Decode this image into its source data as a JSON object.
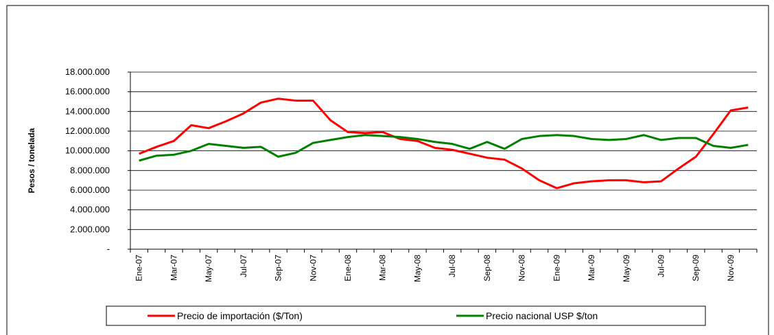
{
  "chart_data": {
    "type": "line",
    "y_label": "Pesos / tonelada",
    "categories": [
      "Ene-07",
      null,
      "Mar-07",
      null,
      "May-07",
      null,
      "Jul-07",
      null,
      "Sep-07",
      null,
      "Nov-07",
      null,
      "Ene-08",
      null,
      "Mar-08",
      null,
      "May-08",
      null,
      "Jul-08",
      null,
      "Sep-08",
      null,
      "Nov-08",
      null,
      "Ene-09",
      null,
      "Mar-09",
      null,
      "May-09",
      null,
      "Jul-09",
      null,
      "Sep-09",
      null,
      "Nov-09",
      null
    ],
    "series": [
      {
        "name": "Precio de importación ($/Ton)",
        "color": "#ff0000",
        "values": [
          9700000,
          10400000,
          11000000,
          12600000,
          12300000,
          13000000,
          13800000,
          14900000,
          15300000,
          15100000,
          15100000,
          13100000,
          11900000,
          11800000,
          11900000,
          11200000,
          11000000,
          10300000,
          10100000,
          9700000,
          9300000,
          9100000,
          8200000,
          7000000,
          6200000,
          6700000,
          6900000,
          7000000,
          7000000,
          6800000,
          6900000,
          8200000,
          9400000,
          11700000,
          14100000,
          14400000
        ]
      },
      {
        "name": "Precio nacional USP $/ton",
        "color": "#008000",
        "values": [
          9000000,
          9500000,
          9600000,
          10000000,
          10700000,
          10500000,
          10300000,
          10400000,
          9400000,
          9800000,
          10800000,
          11100000,
          11400000,
          11600000,
          11500000,
          11400000,
          11200000,
          10900000,
          10700000,
          10200000,
          10900000,
          10200000,
          11200000,
          11500000,
          11600000,
          11500000,
          11200000,
          11100000,
          11200000,
          11600000,
          11100000,
          11300000,
          11300000,
          10500000,
          10300000,
          10600000
        ]
      }
    ],
    "ylim": [
      0,
      18000000
    ],
    "yticks": [
      {
        "value": 0,
        "label": "-"
      },
      {
        "value": 2000000,
        "label": "2.000.000"
      },
      {
        "value": 4000000,
        "label": "4.000.000"
      },
      {
        "value": 6000000,
        "label": "6.000.000"
      },
      {
        "value": 8000000,
        "label": "8.000.000"
      },
      {
        "value": 10000000,
        "label": "10.000.000"
      },
      {
        "value": 12000000,
        "label": "12.000.000"
      },
      {
        "value": 14000000,
        "label": "14.000.000"
      },
      {
        "value": 16000000,
        "label": "16.000.000"
      },
      {
        "value": 18000000,
        "label": "18.000.000"
      }
    ],
    "grid": true
  }
}
